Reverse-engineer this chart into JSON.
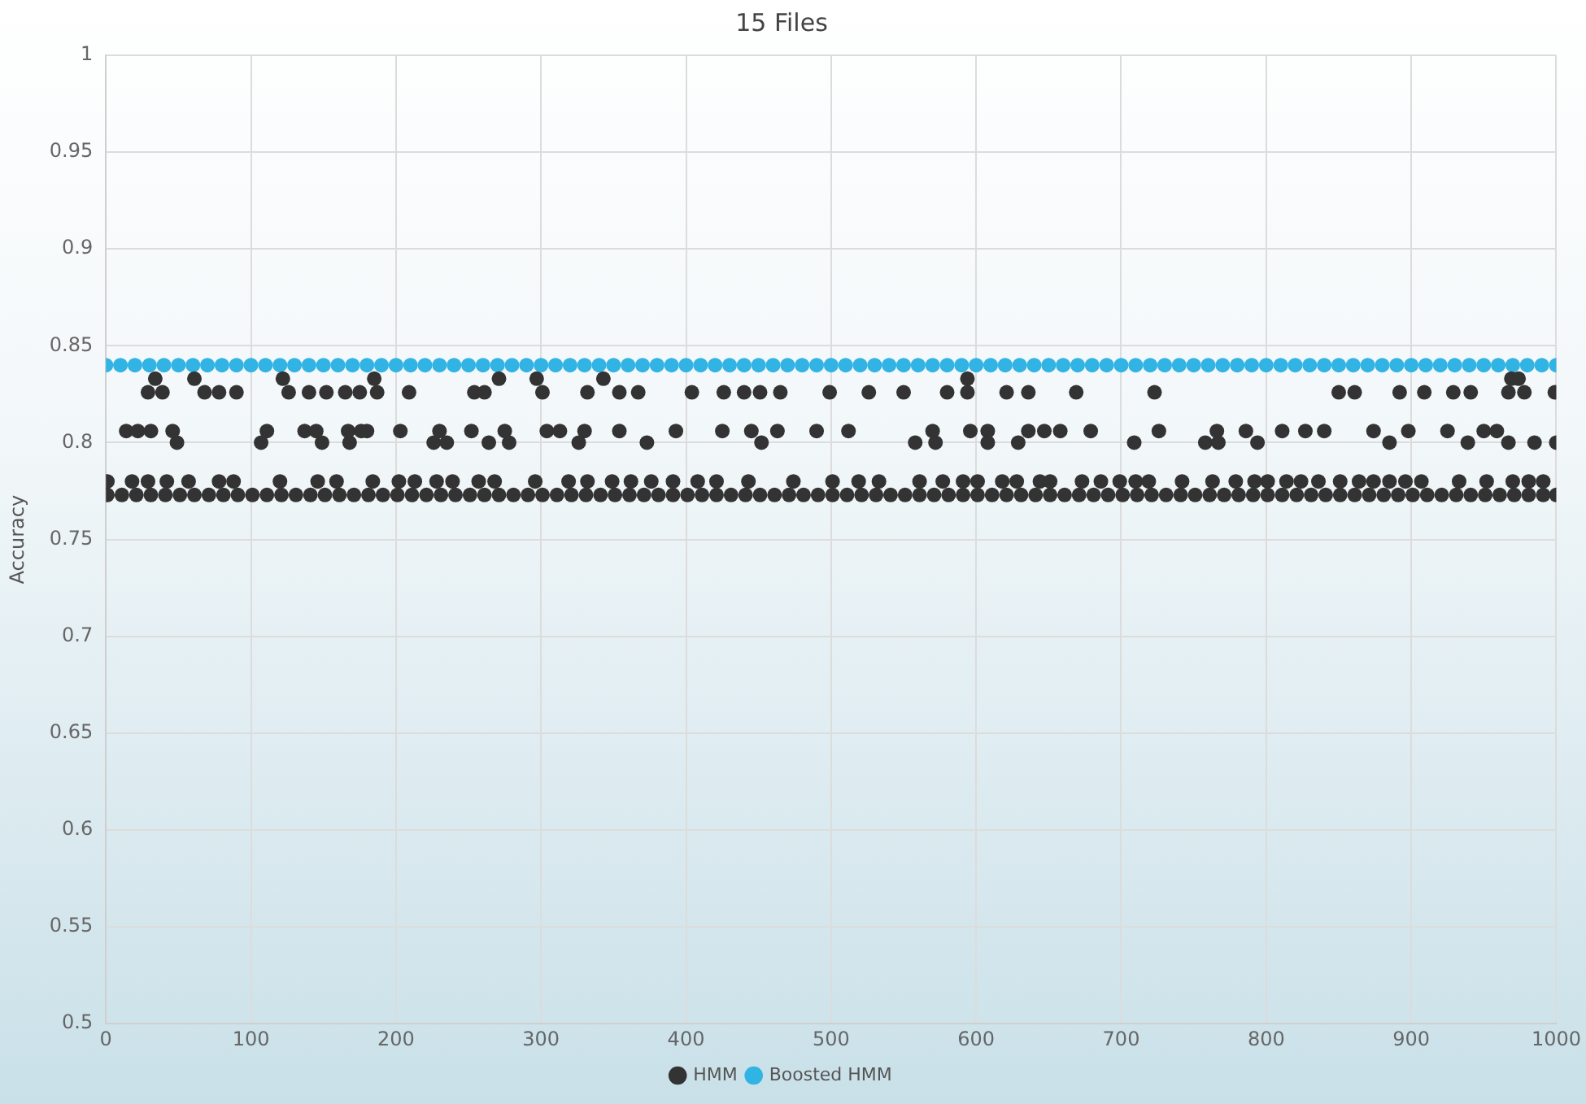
{
  "chart_data": {
    "type": "scatter",
    "title": "15 Files",
    "ylabel": "Accuracy",
    "xlim": [
      0,
      1000
    ],
    "xticks": [
      0,
      100,
      200,
      300,
      400,
      500,
      600,
      700,
      800,
      900,
      1000
    ],
    "ylim": [
      0.5,
      1
    ],
    "yticks": [
      0.5,
      0.55,
      0.6,
      0.65,
      0.7,
      0.75,
      0.8,
      0.85,
      0.9,
      0.95,
      1
    ],
    "grid": true,
    "legend": "bottom",
    "marker": "circle",
    "series": [
      {
        "name": "HMM",
        "color": "#333333",
        "x": [
          1,
          11,
          21,
          31,
          41,
          51,
          61,
          71,
          81,
          91,
          101,
          111,
          121,
          131,
          141,
          151,
          161,
          171,
          181,
          191,
          201,
          211,
          221,
          231,
          241,
          251,
          261,
          271,
          281,
          291,
          301,
          311,
          321,
          331,
          341,
          351,
          361,
          371,
          381,
          391,
          401,
          411,
          421,
          431,
          441,
          451,
          461,
          471,
          481,
          491,
          501,
          511,
          521,
          531,
          541,
          551,
          561,
          571,
          581,
          591,
          601,
          611,
          621,
          631,
          641,
          651,
          661,
          671,
          681,
          691,
          701,
          711,
          721,
          731,
          741,
          751,
          761,
          771,
          781,
          791,
          801,
          811,
          821,
          831,
          841,
          851,
          861,
          871,
          881,
          891,
          901,
          911,
          921,
          931,
          941,
          951,
          961,
          971,
          981,
          991,
          1000,
          1,
          18,
          29,
          42,
          57,
          78,
          88,
          120,
          146,
          159,
          184,
          202,
          213,
          228,
          239,
          257,
          268,
          296,
          319,
          332,
          349,
          362,
          376,
          391,
          408,
          421,
          443,
          474,
          501,
          519,
          533,
          561,
          577,
          591,
          601,
          618,
          628,
          644,
          651,
          673,
          686,
          699,
          710,
          719,
          742,
          763,
          779,
          792,
          801,
          814,
          824,
          836,
          851,
          864,
          874,
          885,
          896,
          907,
          933,
          952,
          970,
          981,
          991,
          49,
          107,
          149,
          168,
          226,
          235,
          264,
          278,
          326,
          373,
          452,
          558,
          572,
          608,
          629,
          709,
          758,
          767,
          794,
          885,
          939,
          967,
          985,
          1000,
          14,
          22,
          31,
          46,
          111,
          137,
          145,
          167,
          176,
          180,
          203,
          230,
          252,
          275,
          304,
          313,
          330,
          354,
          393,
          425,
          445,
          463,
          490,
          512,
          570,
          596,
          608,
          636,
          647,
          658,
          679,
          726,
          766,
          786,
          811,
          827,
          840,
          874,
          898,
          925,
          950,
          959,
          29,
          39,
          68,
          78,
          90,
          126,
          140,
          152,
          165,
          175,
          187,
          209,
          254,
          261,
          301,
          332,
          354,
          367,
          404,
          426,
          440,
          451,
          465,
          499,
          526,
          550,
          580,
          594,
          621,
          636,
          669,
          723,
          850,
          861,
          892,
          909,
          929,
          941,
          967,
          978,
          999,
          34,
          61,
          122,
          185,
          271,
          297,
          343,
          594,
          969,
          974
        ],
        "values": [
          0.773,
          0.773,
          0.773,
          0.773,
          0.773,
          0.773,
          0.773,
          0.773,
          0.773,
          0.773,
          0.773,
          0.773,
          0.773,
          0.773,
          0.773,
          0.773,
          0.773,
          0.773,
          0.773,
          0.773,
          0.773,
          0.773,
          0.773,
          0.773,
          0.773,
          0.773,
          0.773,
          0.773,
          0.773,
          0.773,
          0.773,
          0.773,
          0.773,
          0.773,
          0.773,
          0.773,
          0.773,
          0.773,
          0.773,
          0.773,
          0.773,
          0.773,
          0.773,
          0.773,
          0.773,
          0.773,
          0.773,
          0.773,
          0.773,
          0.773,
          0.773,
          0.773,
          0.773,
          0.773,
          0.773,
          0.773,
          0.773,
          0.773,
          0.773,
          0.773,
          0.773,
          0.773,
          0.773,
          0.773,
          0.773,
          0.773,
          0.773,
          0.773,
          0.773,
          0.773,
          0.773,
          0.773,
          0.773,
          0.773,
          0.773,
          0.773,
          0.773,
          0.773,
          0.773,
          0.773,
          0.773,
          0.773,
          0.773,
          0.773,
          0.773,
          0.773,
          0.773,
          0.773,
          0.773,
          0.773,
          0.773,
          0.773,
          0.773,
          0.773,
          0.773,
          0.773,
          0.773,
          0.773,
          0.773,
          0.773,
          0.773,
          0.78,
          0.78,
          0.78,
          0.78,
          0.78,
          0.78,
          0.78,
          0.78,
          0.78,
          0.78,
          0.78,
          0.78,
          0.78,
          0.78,
          0.78,
          0.78,
          0.78,
          0.78,
          0.78,
          0.78,
          0.78,
          0.78,
          0.78,
          0.78,
          0.78,
          0.78,
          0.78,
          0.78,
          0.78,
          0.78,
          0.78,
          0.78,
          0.78,
          0.78,
          0.78,
          0.78,
          0.78,
          0.78,
          0.78,
          0.78,
          0.78,
          0.78,
          0.78,
          0.78,
          0.78,
          0.78,
          0.78,
          0.78,
          0.78,
          0.78,
          0.78,
          0.78,
          0.78,
          0.78,
          0.78,
          0.78,
          0.78,
          0.78,
          0.78,
          0.78,
          0.78,
          0.78,
          0.78,
          0.8,
          0.8,
          0.8,
          0.8,
          0.8,
          0.8,
          0.8,
          0.8,
          0.8,
          0.8,
          0.8,
          0.8,
          0.8,
          0.8,
          0.8,
          0.8,
          0.8,
          0.8,
          0.8,
          0.8,
          0.8,
          0.8,
          0.8,
          0.8,
          0.806,
          0.806,
          0.806,
          0.806,
          0.806,
          0.806,
          0.806,
          0.806,
          0.806,
          0.806,
          0.806,
          0.806,
          0.806,
          0.806,
          0.806,
          0.806,
          0.806,
          0.806,
          0.806,
          0.806,
          0.806,
          0.806,
          0.806,
          0.806,
          0.806,
          0.806,
          0.806,
          0.806,
          0.806,
          0.806,
          0.806,
          0.806,
          0.806,
          0.806,
          0.806,
          0.806,
          0.806,
          0.806,
          0.806,
          0.806,
          0.806,
          0.806,
          0.826,
          0.826,
          0.826,
          0.826,
          0.826,
          0.826,
          0.826,
          0.826,
          0.826,
          0.826,
          0.826,
          0.826,
          0.826,
          0.826,
          0.826,
          0.826,
          0.826,
          0.826,
          0.826,
          0.826,
          0.826,
          0.826,
          0.826,
          0.826,
          0.826,
          0.826,
          0.826,
          0.826,
          0.826,
          0.826,
          0.826,
          0.826,
          0.826,
          0.826,
          0.826,
          0.826,
          0.826,
          0.826,
          0.826,
          0.826,
          0.826,
          0.833,
          0.833,
          0.833,
          0.833,
          0.833,
          0.833,
          0.833,
          0.833,
          0.833,
          0.833
        ]
      },
      {
        "name": "Boosted HMM",
        "color": "#31b4e4",
        "x": [
          0,
          10,
          20,
          30,
          40,
          50,
          60,
          70,
          80,
          90,
          100,
          110,
          120,
          130,
          140,
          150,
          160,
          170,
          180,
          190,
          200,
          210,
          220,
          230,
          240,
          250,
          260,
          270,
          280,
          290,
          300,
          310,
          320,
          330,
          340,
          350,
          360,
          370,
          380,
          390,
          400,
          410,
          420,
          430,
          440,
          450,
          460,
          470,
          480,
          490,
          500,
          510,
          520,
          530,
          540,
          550,
          560,
          570,
          580,
          590,
          600,
          610,
          620,
          630,
          640,
          650,
          660,
          670,
          680,
          690,
          700,
          710,
          720,
          730,
          740,
          750,
          760,
          770,
          780,
          790,
          800,
          810,
          820,
          830,
          840,
          850,
          860,
          870,
          880,
          890,
          900,
          910,
          920,
          930,
          940,
          950,
          960,
          970,
          980,
          990,
          1000
        ],
        "values": [
          0.84,
          0.84,
          0.84,
          0.84,
          0.84,
          0.84,
          0.84,
          0.84,
          0.84,
          0.84,
          0.84,
          0.84,
          0.84,
          0.84,
          0.84,
          0.84,
          0.84,
          0.84,
          0.84,
          0.84,
          0.84,
          0.84,
          0.84,
          0.84,
          0.84,
          0.84,
          0.84,
          0.84,
          0.84,
          0.84,
          0.84,
          0.84,
          0.84,
          0.84,
          0.84,
          0.84,
          0.84,
          0.84,
          0.84,
          0.84,
          0.84,
          0.84,
          0.84,
          0.84,
          0.84,
          0.84,
          0.84,
          0.84,
          0.84,
          0.84,
          0.84,
          0.84,
          0.84,
          0.84,
          0.84,
          0.84,
          0.84,
          0.84,
          0.84,
          0.84,
          0.84,
          0.84,
          0.84,
          0.84,
          0.84,
          0.84,
          0.84,
          0.84,
          0.84,
          0.84,
          0.84,
          0.84,
          0.84,
          0.84,
          0.84,
          0.84,
          0.84,
          0.84,
          0.84,
          0.84,
          0.84,
          0.84,
          0.84,
          0.84,
          0.84,
          0.84,
          0.84,
          0.84,
          0.84,
          0.84,
          0.84,
          0.84,
          0.84,
          0.84,
          0.84,
          0.84,
          0.84,
          0.84,
          0.84,
          0.84,
          0.84
        ]
      }
    ]
  }
}
